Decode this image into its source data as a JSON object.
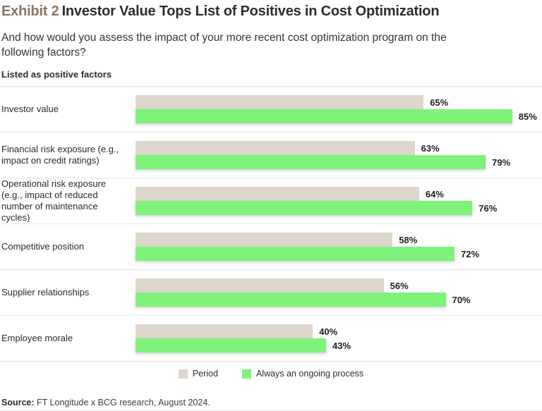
{
  "header": {
    "exhibit_label": "Exhibit 2",
    "title": "Investor Value Tops List of Positives in Cost Optimization",
    "subtitle": "And how would you assess the impact of your more recent cost optimization program on the following factors?",
    "section_label": "Listed as positive factors"
  },
  "legend": {
    "items": [
      {
        "label": "Period",
        "color": "#ddd7cb"
      },
      {
        "label": "Always an ongoing process",
        "color": "#7ef27b"
      }
    ]
  },
  "footer": {
    "source_label": "Source:",
    "source_text": " FT Longitude x BCG research, August 2024."
  },
  "colors": {
    "exhibit_accent": "#8a7462",
    "period_bar": "#ddd7cb",
    "ongoing_bar": "#7ef27b",
    "separator": "#e8e6e3"
  },
  "chart_data": {
    "type": "bar",
    "orientation": "horizontal",
    "title": "Listed as positive factors",
    "categories": [
      "Investor value",
      "Financial risk exposure (e.g., impact on credit ratings)",
      "Operational risk exposure (e.g., impact of reduced number of maintenance cycles)",
      "Competitive position",
      "Supplier relationships",
      "Employee morale"
    ],
    "series": [
      {
        "name": "Period",
        "color": "#ddd7cb",
        "values": [
          65,
          63,
          64,
          58,
          56,
          40
        ]
      },
      {
        "name": "Always an ongoing process",
        "color": "#7ef27b",
        "values": [
          85,
          79,
          76,
          72,
          70,
          43
        ]
      }
    ],
    "value_suffix": "%",
    "xlim": [
      0,
      100
    ],
    "grid": false,
    "legend_position": "bottom",
    "value_labels": "outside-end"
  }
}
